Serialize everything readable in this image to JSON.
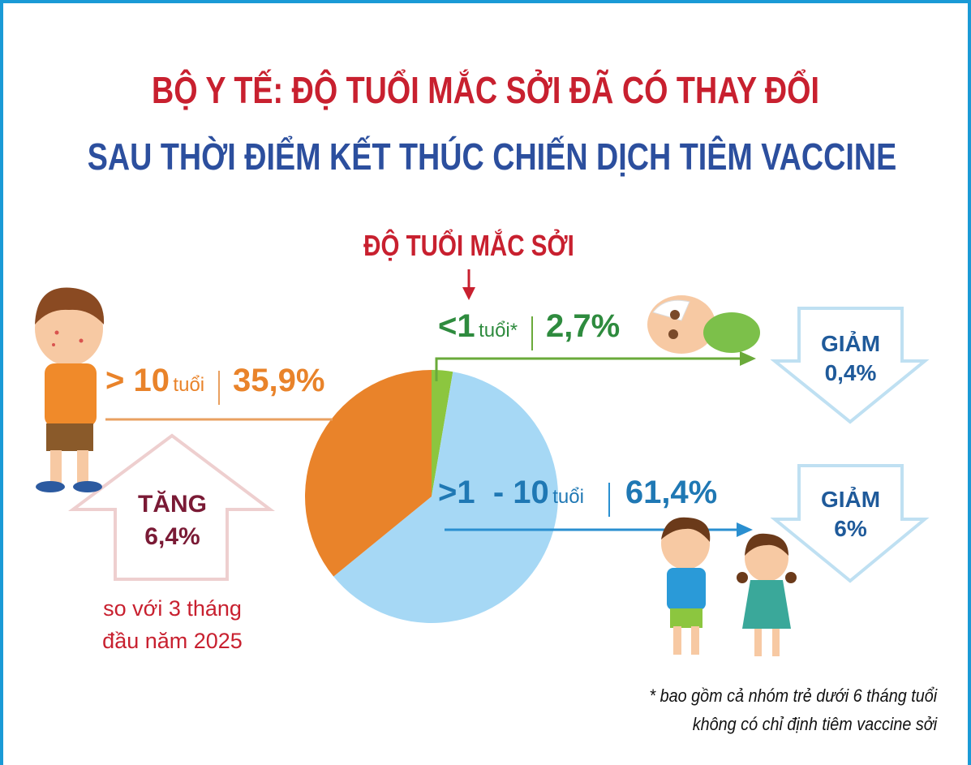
{
  "title_line1": "BỘ Y TẾ: ĐỘ TUỔI MẮC SỞI ĐÃ CÓ THAY ĐỔI",
  "title_line2": "SAU THỜI ĐIỂM KẾT THÚC CHIẾN DỊCH TIÊM VACCINE",
  "colors": {
    "title_red": "#c8202f",
    "title_blue": "#2c4f9e",
    "green": "#2e8b3e",
    "orange": "#e9832a",
    "blue": "#1f78b4",
    "frame": "#1a9ad6"
  },
  "chart_data": {
    "type": "pie",
    "title": "ĐỘ TUỔI MẮC SỞI",
    "slices": [
      {
        "label": "<1 tuổi*",
        "value": 2.7,
        "value_label": "2,7%",
        "color": "#8cc63f",
        "change_label": "GIẢM",
        "change_value": "0,4%"
      },
      {
        "label": ">1 - 10 tuổi",
        "value": 61.4,
        "value_label": "61,4%",
        "color": "#a6d8f5",
        "change_label": "GIẢM",
        "change_value": "6%"
      },
      {
        "label": "> 10 tuổi",
        "value": 35.9,
        "value_label": "35,9%",
        "color": "#e9832a",
        "change_label": "TĂNG",
        "change_value": "6,4%"
      }
    ]
  },
  "slice_parts": {
    "lt1": {
      "prefix": "<1",
      "unit": "tuổi*"
    },
    "mid": {
      "prefix": ">1  - 10",
      "unit": "tuổi"
    },
    "gt10": {
      "prefix": "> 10",
      "unit": "tuổi"
    }
  },
  "comparison_line1": "so với 3 tháng",
  "comparison_line2": "đầu năm 2025",
  "footnote_line1": "* bao gồm cả nhóm trẻ dưới 6 tháng tuổi",
  "footnote_line2": "không có chỉ định tiêm vaccine sởi"
}
